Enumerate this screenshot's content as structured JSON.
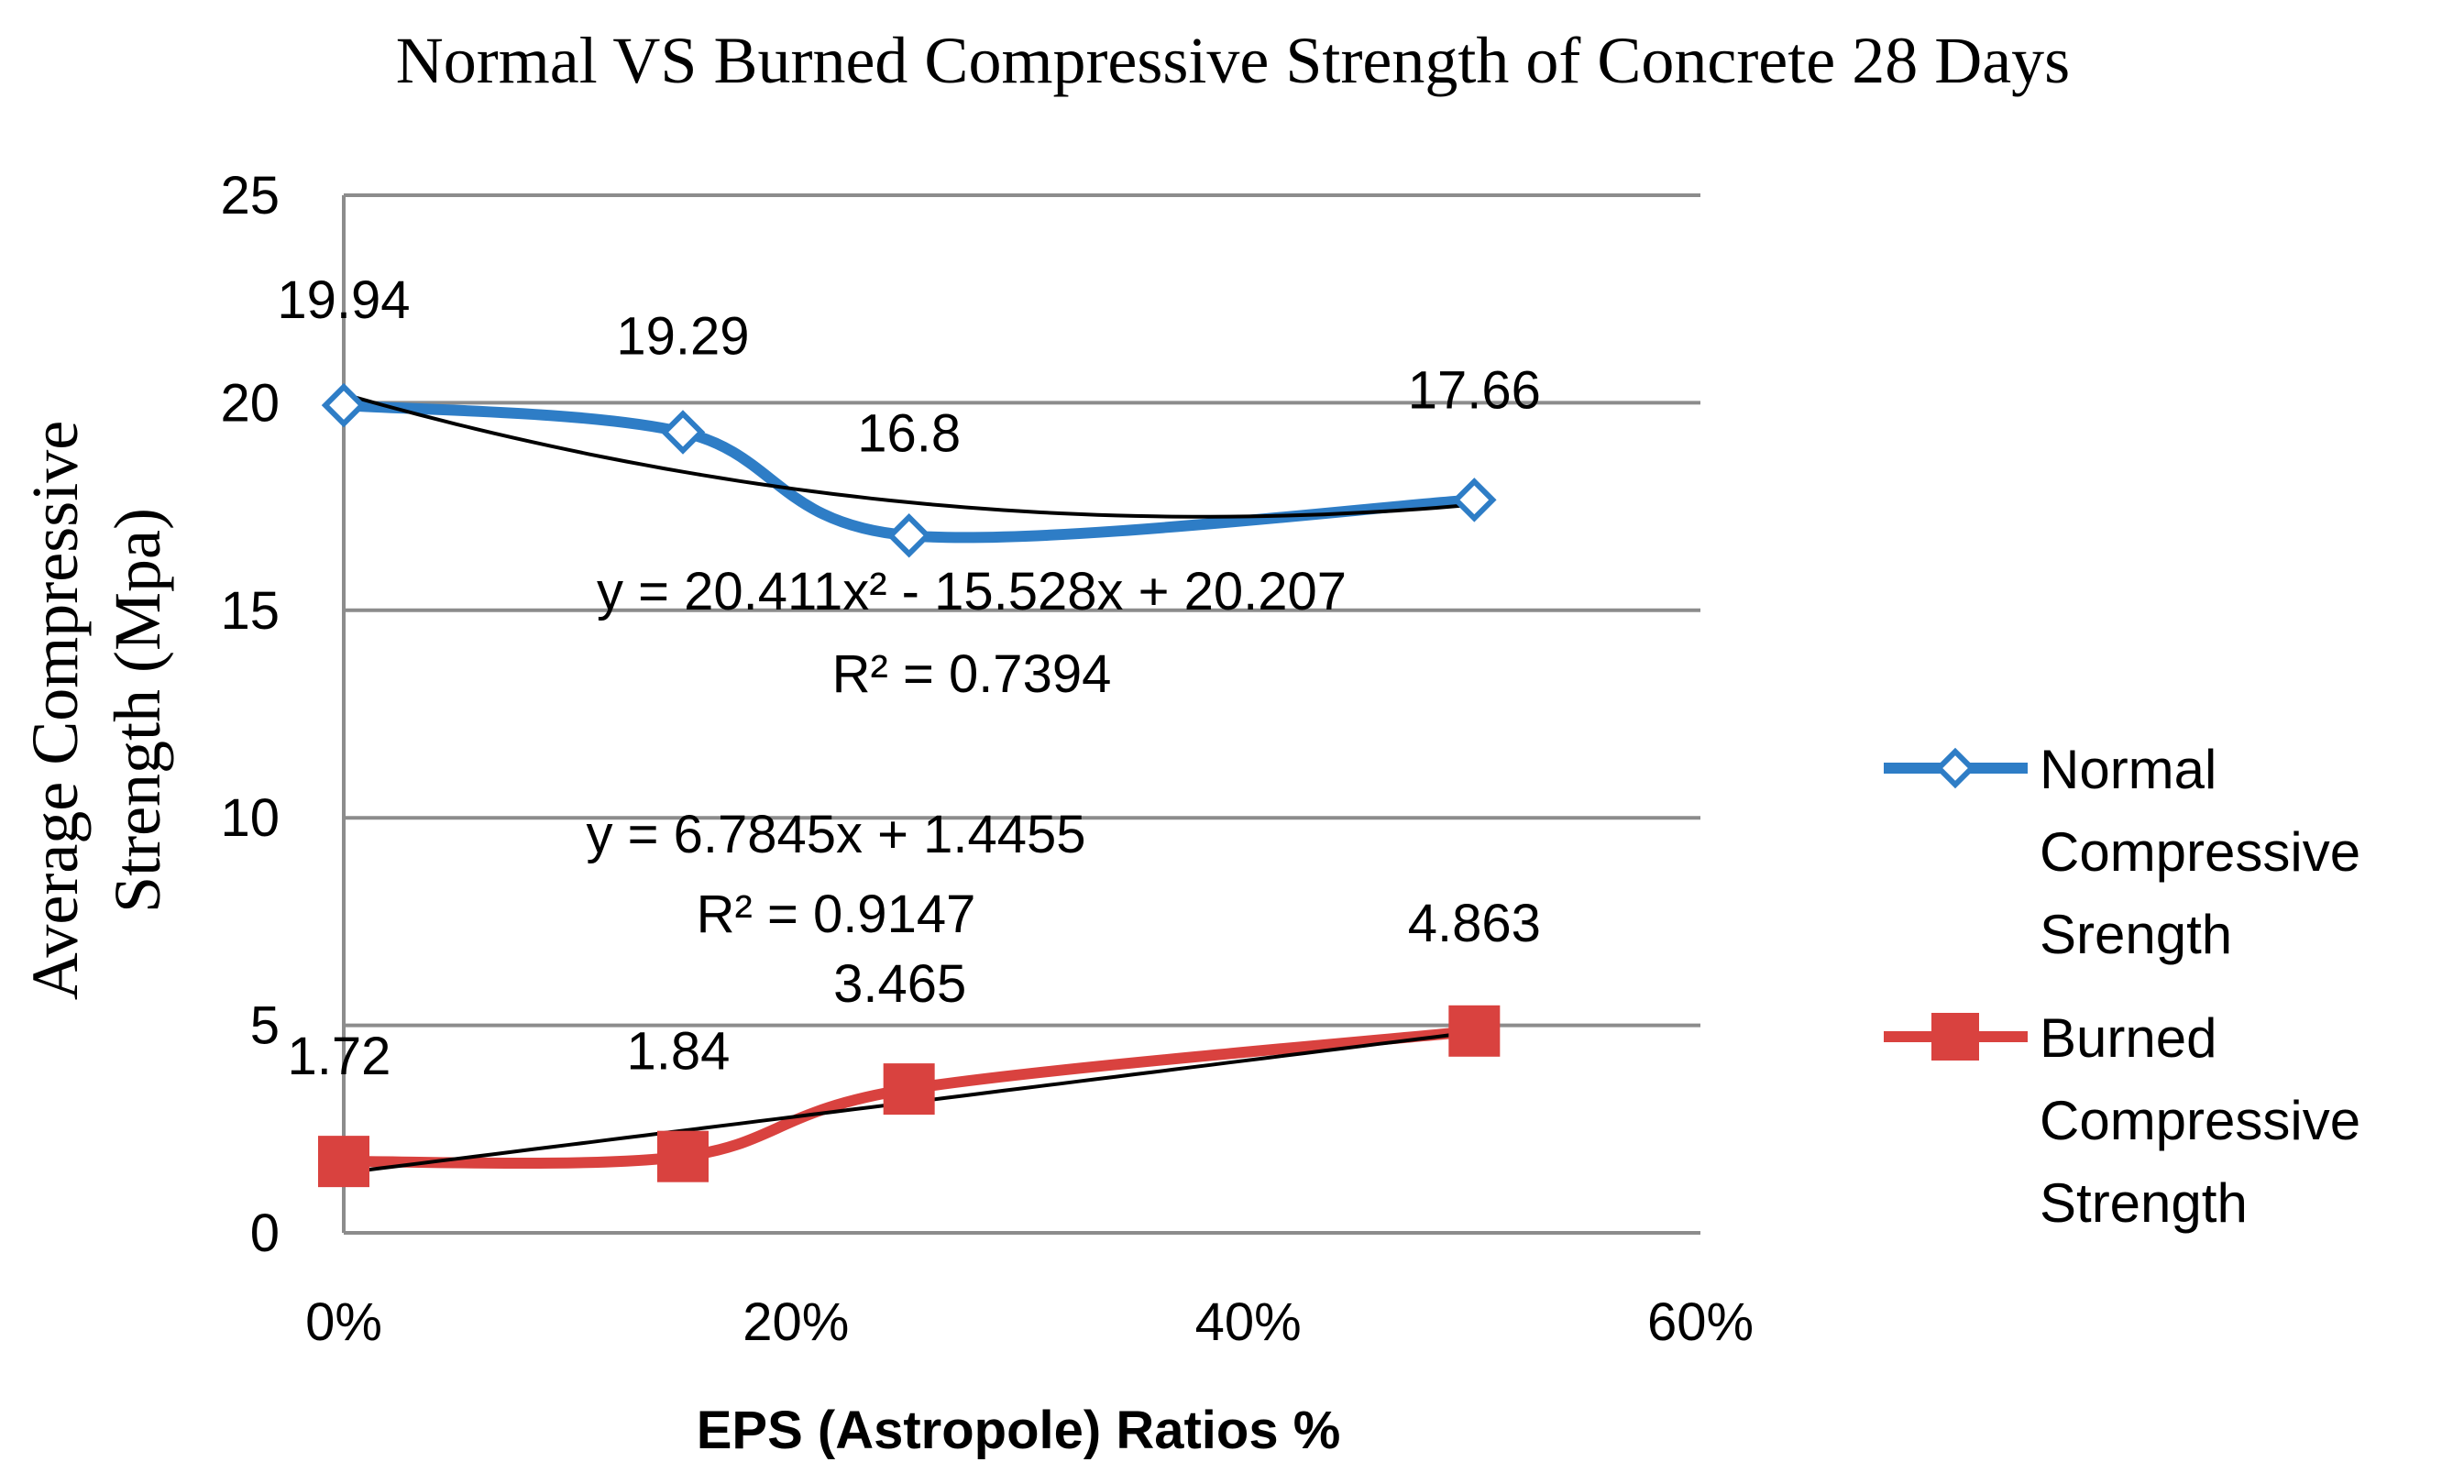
{
  "chart_data": {
    "type": "line",
    "title": "Normal VS Burned Compressive Strength of Concrete 28 Days",
    "xlabel": "EPS (Astropole) Ratios %",
    "ylabel_lines": [
      "Average Compressive",
      "Strength (Mpa)"
    ],
    "xlim": [
      0,
      0.6
    ],
    "ylim": [
      0,
      25
    ],
    "x_ticks": [
      0,
      0.2,
      0.4,
      0.6
    ],
    "x_tick_labels": [
      "0%",
      "20%",
      "40%",
      "60%"
    ],
    "y_ticks": [
      0,
      5,
      10,
      15,
      20,
      25
    ],
    "y_tick_labels": [
      "0",
      "5",
      "10",
      "15",
      "20",
      "25"
    ],
    "grid": "horizontal",
    "legend_position": "right",
    "x": [
      0,
      0.15,
      0.25,
      0.5
    ],
    "series": [
      {
        "name_lines": [
          "Normal",
          "Compressive",
          "Srength"
        ],
        "values": [
          19.94,
          19.29,
          16.8,
          17.66
        ],
        "labels": [
          "19.94",
          "19.29",
          "16.8",
          "17.66"
        ],
        "color": "#2E7DC6",
        "marker": "diamond-open",
        "trendline": {
          "type": "polynomial",
          "coefficients": [
            20.411,
            -15.528,
            20.207
          ],
          "equation_text": "y = 20.411x² - 15.528x + 20.207",
          "r2_text": "R² = 0.7394"
        }
      },
      {
        "name_lines": [
          "Burned",
          "Compressive",
          "Strength"
        ],
        "values": [
          1.72,
          1.84,
          3.465,
          4.863
        ],
        "labels": [
          "1.72",
          "1.84",
          "3.465",
          "4.863"
        ],
        "color": "#D9423F",
        "marker": "square",
        "trendline": {
          "type": "linear",
          "coefficients": [
            6.7845,
            1.4455
          ],
          "equation_text": "y = 6.7845x + 1.4455",
          "r2_text": "R² = 0.9147"
        }
      }
    ],
    "trendline_color": "#000000"
  }
}
